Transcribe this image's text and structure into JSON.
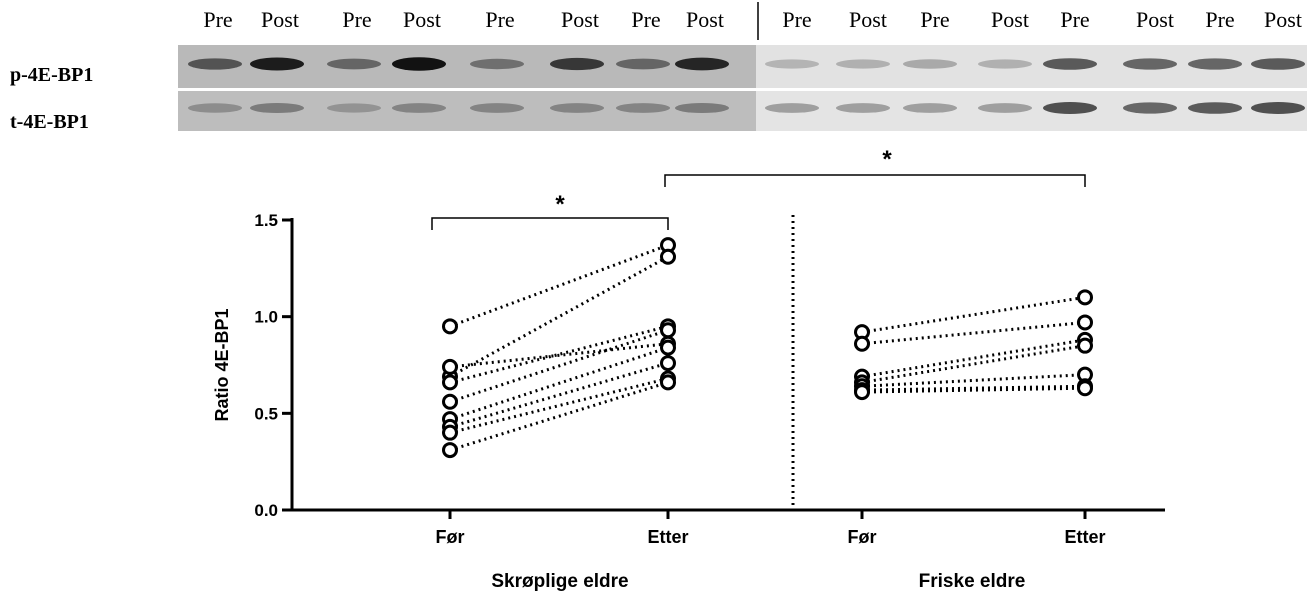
{
  "blot": {
    "lane_labels": [
      "Pre",
      "Post",
      "Pre",
      "Post",
      "Pre",
      "Post",
      "Pre",
      "Post",
      "Pre",
      "Post",
      "Pre",
      "Post",
      "Pre",
      "Post",
      "Pre",
      "Post"
    ],
    "row_labels": [
      "p-4E-BP1",
      "t-4E-BP1"
    ]
  },
  "chart_data": {
    "type": "paired-dot",
    "y_label": "Ratio 4E-BP1",
    "ylim": [
      0,
      1.5
    ],
    "yticks": [
      {
        "value": 0,
        "label": "0.0"
      },
      {
        "value": 0.5,
        "label": "0.5"
      },
      {
        "value": 1,
        "label": "1.0"
      },
      {
        "value": 1.5,
        "label": "1.5"
      }
    ],
    "groups": [
      {
        "name": "Skrøplige eldre",
        "categories": [
          "Før",
          "Etter"
        ],
        "subjects": [
          [
            0.95,
            1.37
          ],
          [
            0.69,
            1.31
          ],
          [
            0.74,
            0.86
          ],
          [
            0.66,
            0.95
          ],
          [
            0.56,
            0.93
          ],
          [
            0.47,
            0.84
          ],
          [
            0.43,
            0.76
          ],
          [
            0.4,
            0.68
          ],
          [
            0.31,
            0.66
          ]
        ]
      },
      {
        "name": "Friske eldre",
        "categories": [
          "Før",
          "Etter"
        ],
        "subjects": [
          [
            0.92,
            1.1
          ],
          [
            0.86,
            0.97
          ],
          [
            0.69,
            0.88
          ],
          [
            0.66,
            0.85
          ],
          [
            0.64,
            0.7
          ],
          [
            0.62,
            0.64
          ],
          [
            0.61,
            0.63
          ]
        ]
      }
    ],
    "annotations": [
      "*",
      "*"
    ]
  }
}
